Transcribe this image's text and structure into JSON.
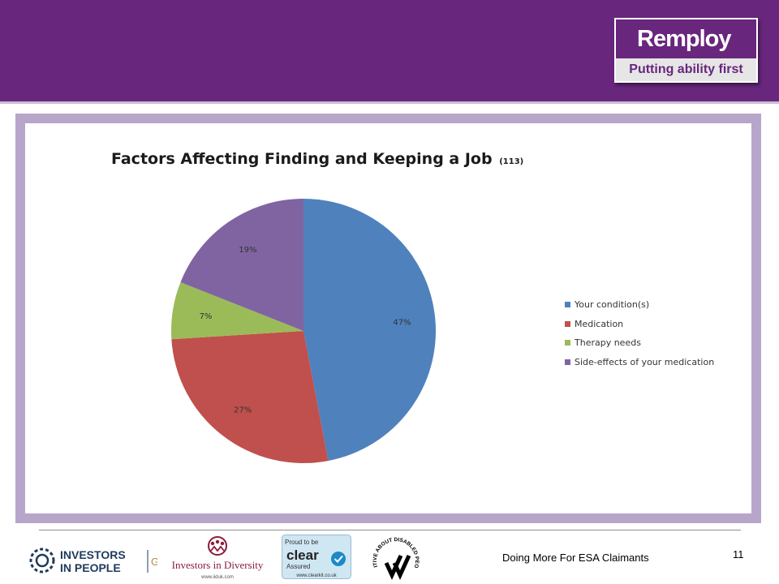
{
  "header": {
    "brand": "Remploy",
    "tagline": "Putting ability first"
  },
  "chart_data": {
    "type": "pie",
    "title": "Factors Affecting Finding and Keeping a Job",
    "title_count": "(113)",
    "categories": [
      "Your condition(s)",
      "Medication",
      "Therapy needs",
      "Side-effects of your medication"
    ],
    "values": [
      47,
      27,
      7,
      19
    ],
    "labels": [
      "47%",
      "27%",
      "7%",
      "19%"
    ],
    "colors": [
      "#4f81bd",
      "#c0504d",
      "#9bbb59",
      "#8064a2"
    ],
    "legend_position": "right"
  },
  "footer": {
    "presentation_title": "Doing More For ESA Claimants",
    "page_number": "11",
    "logos": {
      "investors_in_people": {
        "line1": "INVESTORS",
        "line2": "IN PEOPLE",
        "level": "Gold"
      },
      "investors_in_diversity": {
        "name": "Investors in Diversity",
        "url": "www.iiduk.com"
      },
      "clear_assured": {
        "top": "Proud to be",
        "brand": "clear",
        "sub": "Assured",
        "url": "www.clearkit.co.uk"
      },
      "positive_about_disabled_people": {
        "arc": "POSITIVE ABOUT DISABLED PEOPLE"
      }
    }
  }
}
